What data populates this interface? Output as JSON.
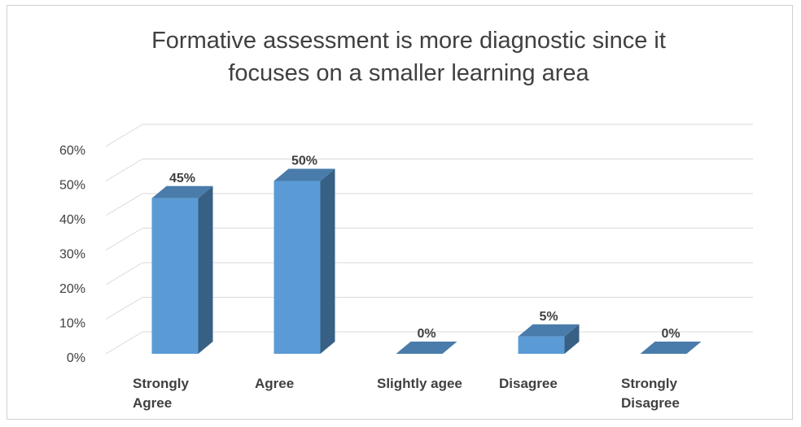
{
  "chart_data": {
    "type": "bar3d",
    "title": "Formative assessment is more diagnostic since it focuses on a smaller learning area",
    "categories": [
      "Strongly Agree",
      "Agree",
      "Slightly agee",
      "Disagree",
      "Strongly Disagree"
    ],
    "values": [
      45,
      50,
      0,
      5,
      0
    ],
    "value_labels": [
      "45%",
      "50%",
      "0%",
      "5%",
      "0%"
    ],
    "color": "#5b9bd5",
    "ylim": [
      0,
      60
    ],
    "yticks": [
      {
        "value": 0,
        "label": "0%"
      },
      {
        "value": 10,
        "label": "10%"
      },
      {
        "value": 20,
        "label": "20%"
      },
      {
        "value": 30,
        "label": "30%"
      },
      {
        "value": 40,
        "label": "40%"
      },
      {
        "value": 50,
        "label": "50%"
      },
      {
        "value": 60,
        "label": "60%"
      }
    ],
    "grid": true
  }
}
